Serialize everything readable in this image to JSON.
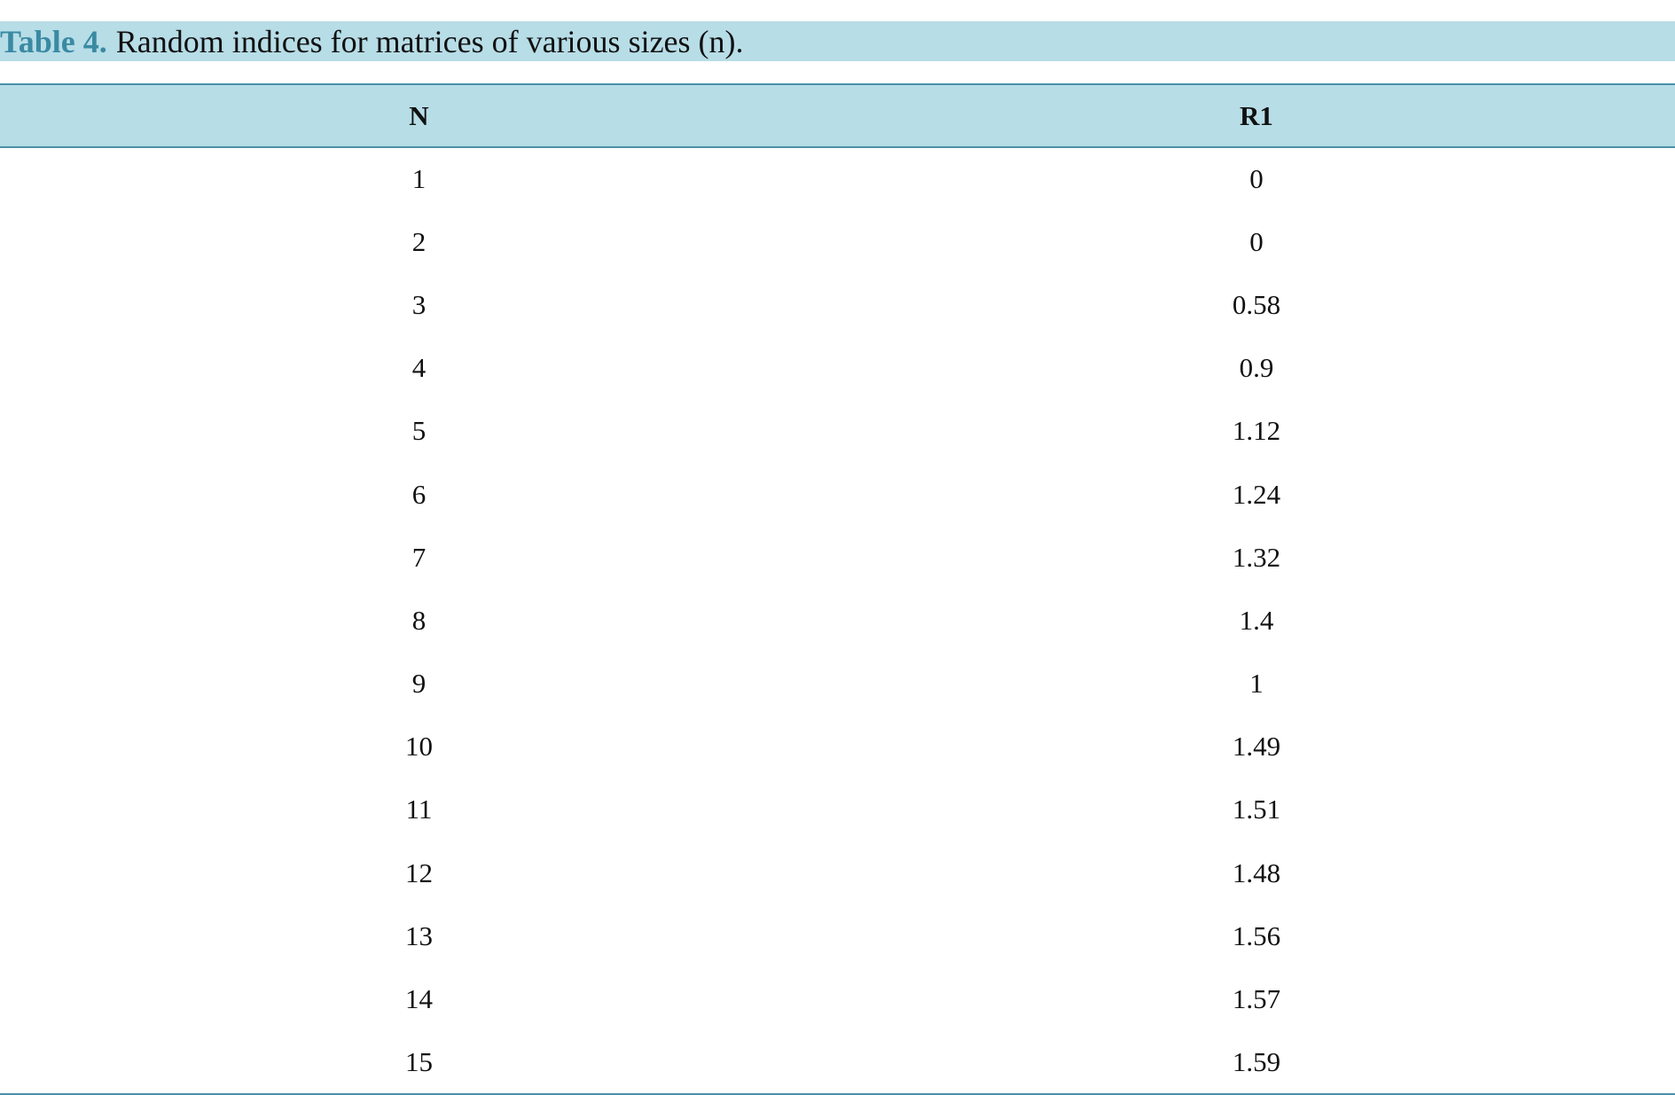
{
  "caption": {
    "label": "Table 4.",
    "text": "Random indices for matrices of various sizes (n)."
  },
  "table": {
    "headers": [
      "N",
      "R1"
    ],
    "rows": [
      [
        "1",
        "0"
      ],
      [
        "2",
        "0"
      ],
      [
        "3",
        "0.58"
      ],
      [
        "4",
        "0.9"
      ],
      [
        "5",
        "1.12"
      ],
      [
        "6",
        "1.24"
      ],
      [
        "7",
        "1.32"
      ],
      [
        "8",
        "1.4"
      ],
      [
        "9",
        "1"
      ],
      [
        "10",
        "1.49"
      ],
      [
        "11",
        "1.51"
      ],
      [
        "12",
        "1.48"
      ],
      [
        "13",
        "1.56"
      ],
      [
        "14",
        "1.57"
      ],
      [
        "15",
        "1.59"
      ]
    ]
  },
  "colors": {
    "header_background": "#b7dde7",
    "caption_label": "#3a8aa3",
    "rule": "#4a90a8"
  }
}
